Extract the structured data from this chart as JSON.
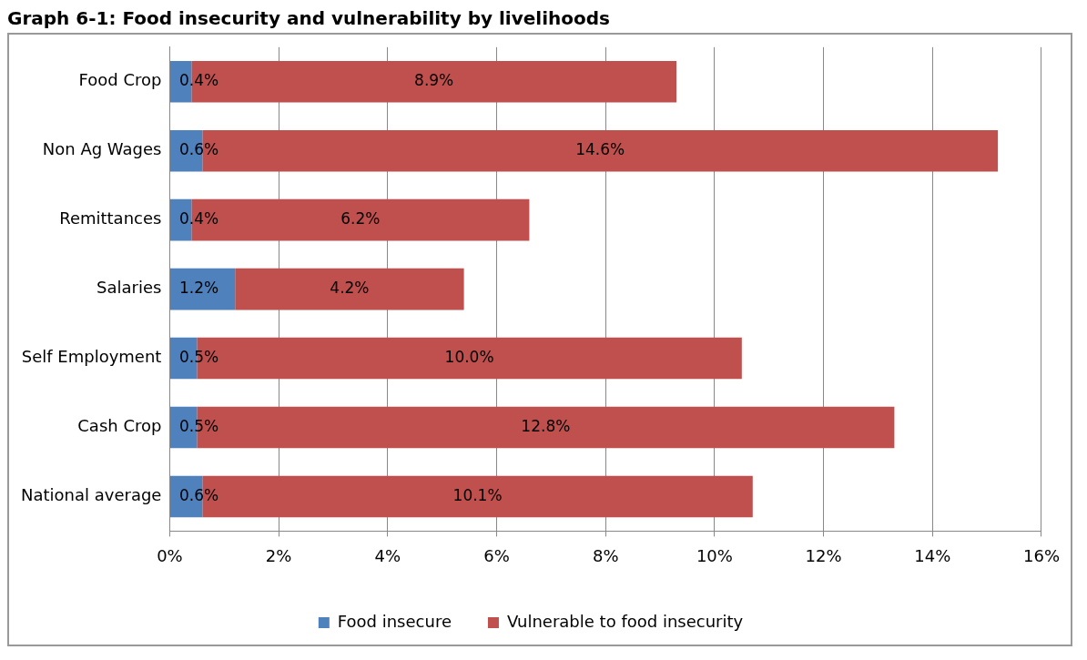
{
  "chart_data": {
    "type": "bar",
    "orientation": "horizontal",
    "stacked": true,
    "title": "Graph 6-1: Food insecurity and vulnerability by livelihoods",
    "categories": [
      "Food Crop",
      "Non Ag Wages",
      "Remittances",
      "Salaries",
      "Self Employment",
      "Cash Crop",
      "National average"
    ],
    "series": [
      {
        "name": "Food insecure",
        "color": "#4f81bd",
        "values": [
          0.4,
          0.6,
          0.4,
          1.2,
          0.5,
          0.5,
          0.6
        ],
        "value_labels": [
          "0.4%",
          "0.6%",
          "0.4%",
          "1.2%",
          "0.5%",
          "0.5%",
          "0.6%"
        ]
      },
      {
        "name": "Vulnerable to food insecurity",
        "color": "#c0504d",
        "values": [
          8.9,
          14.6,
          6.2,
          4.2,
          10.0,
          12.8,
          10.1
        ],
        "value_labels": [
          "8.9%",
          "14.6%",
          "6.2%",
          "4.2%",
          "10.0%",
          "12.8%",
          "10.1%"
        ]
      }
    ],
    "xlim": [
      0,
      16
    ],
    "xticks": [
      {
        "value": 0,
        "label": "0%"
      },
      {
        "value": 2,
        "label": "2%"
      },
      {
        "value": 4,
        "label": "4%"
      },
      {
        "value": 6,
        "label": "6%"
      },
      {
        "value": 8,
        "label": "8%"
      },
      {
        "value": 10,
        "label": "10%"
      },
      {
        "value": 12,
        "label": "12%"
      },
      {
        "value": 14,
        "label": "14%"
      },
      {
        "value": 16,
        "label": "16%"
      }
    ],
    "grid": "x",
    "legend": "bottom"
  }
}
